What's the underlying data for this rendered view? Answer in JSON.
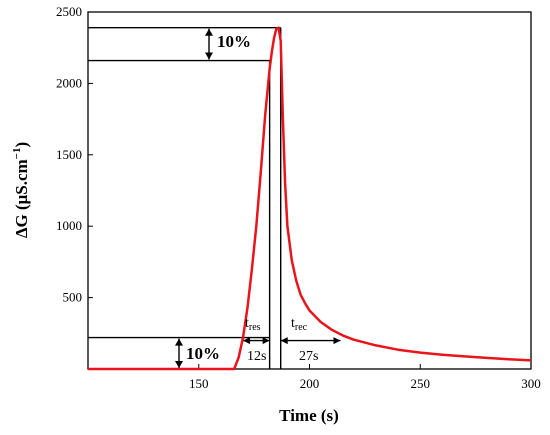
{
  "chart_data": {
    "type": "line",
    "xlabel": "Time (s)",
    "ylabel_main": "ΔG (μS.cm",
    "ylabel_sup": "−1",
    "ylabel_close": ")",
    "xlim": [
      100,
      300
    ],
    "ylim": [
      0,
      2500
    ],
    "xticks": [
      150,
      200,
      250,
      300
    ],
    "yticks": [
      500,
      1000,
      1500,
      2000,
      2500
    ],
    "line_color": "#e8151b",
    "series": [
      {
        "x": [
          100,
          150,
          166,
          168,
          170,
          172,
          174,
          176,
          178,
          180,
          182,
          183,
          184,
          185,
          186,
          187,
          188,
          189,
          190,
          192,
          194,
          196,
          198,
          200,
          205,
          210,
          215,
          220,
          230,
          240,
          250,
          260,
          270,
          280,
          290,
          300
        ],
        "y": [
          0,
          0,
          0,
          80,
          220,
          430,
          700,
          1000,
          1380,
          1780,
          2100,
          2220,
          2320,
          2380,
          2390,
          2300,
          1750,
          1300,
          1000,
          760,
          620,
          520,
          460,
          410,
          330,
          275,
          235,
          205,
          165,
          135,
          115,
          100,
          88,
          78,
          68,
          60
        ]
      }
    ],
    "annotations": {
      "top_percent": "10%",
      "bottom_percent": "10%",
      "t_res_main": "t",
      "t_res_sub": "res",
      "t_res_value": "12s",
      "t_rec_main": "t",
      "t_rec_sub": "rec",
      "t_rec_value": "27s",
      "peak_y": 2390,
      "level_90_y": 2160,
      "level_10_y": 220,
      "t_res_start_x": 170,
      "t_res_end_x": 182,
      "t_rec_start_x": 187,
      "t_rec_end_x": 214
    }
  }
}
